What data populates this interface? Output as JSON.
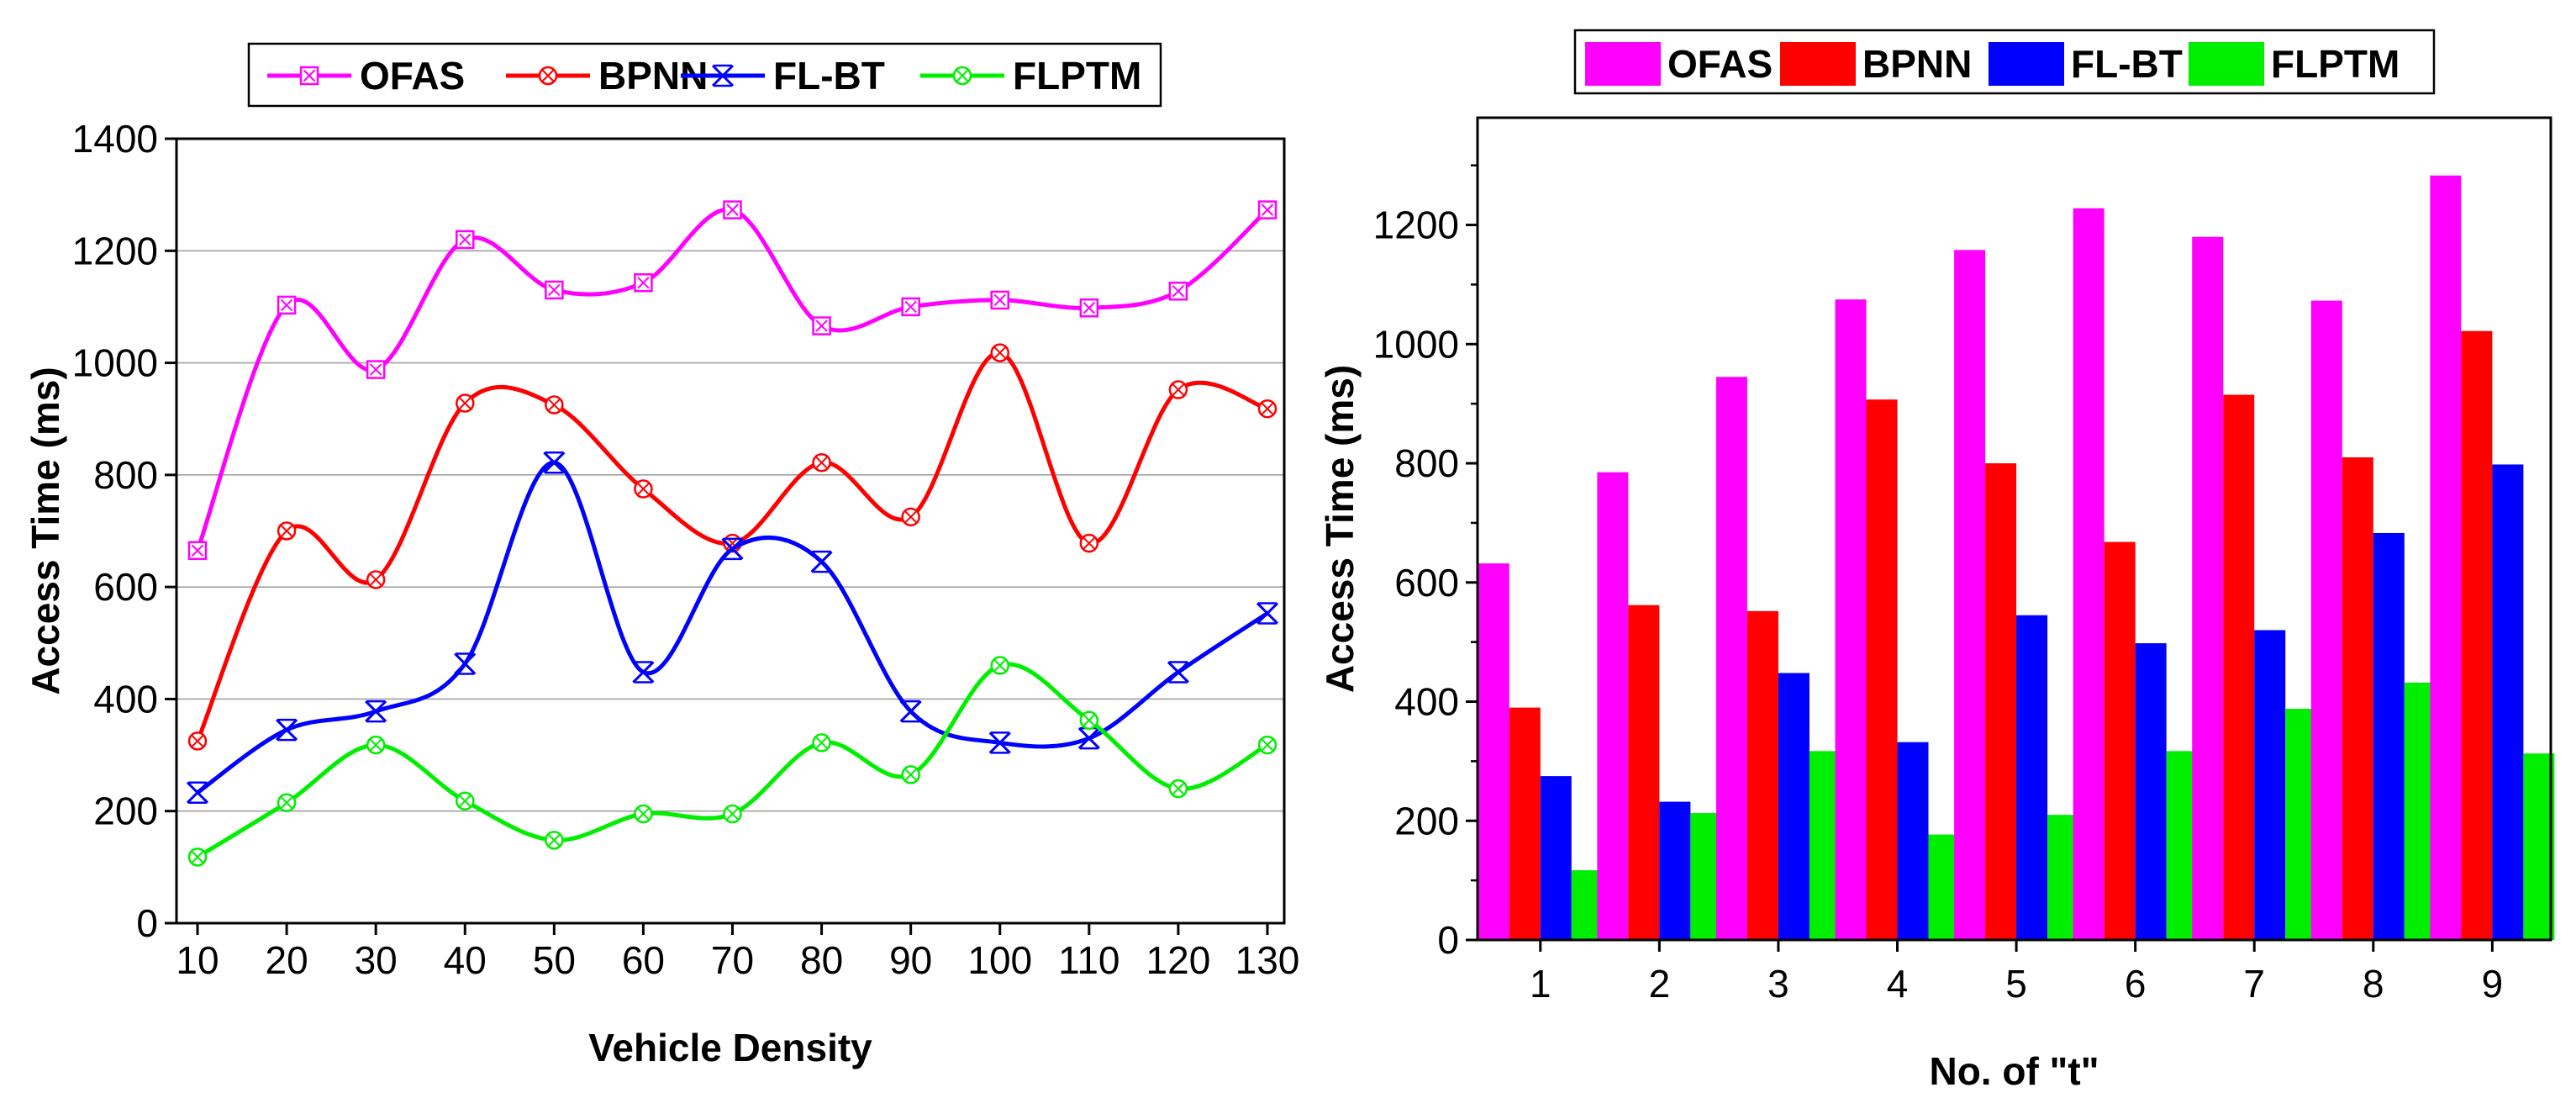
{
  "chart_data": [
    {
      "type": "line",
      "title": "",
      "xlabel": "Vehicle Density",
      "ylabel": "Access Time (ms)",
      "x": [
        10,
        20,
        30,
        40,
        50,
        60,
        70,
        80,
        90,
        100,
        110,
        120,
        130
      ],
      "xlim": [
        10,
        130
      ],
      "ylim": [
        0,
        1400
      ],
      "yticks": [
        0,
        200,
        400,
        600,
        800,
        1000,
        1200,
        1400
      ],
      "grid": true,
      "legend_position": "top",
      "series": [
        {
          "name": "OFAS",
          "color": "#ff00ff",
          "marker": "square-x",
          "values": [
            665,
            1103,
            988,
            1220,
            1130,
            1143,
            1273,
            1066,
            1100,
            1112,
            1098,
            1128,
            1273
          ]
        },
        {
          "name": "BPNN",
          "color": "#ff0000",
          "marker": "circle-x",
          "values": [
            325,
            700,
            613,
            928,
            925,
            775,
            678,
            822,
            725,
            1018,
            678,
            952,
            918
          ]
        },
        {
          "name": "FL-BT",
          "color": "#0000ff",
          "marker": "x",
          "values": [
            233,
            345,
            378,
            463,
            822,
            448,
            668,
            645,
            378,
            322,
            330,
            448,
            553
          ]
        },
        {
          "name": "FLPTM",
          "color": "#00ee00",
          "marker": "circle-x",
          "values": [
            118,
            215,
            318,
            218,
            148,
            195,
            195,
            322,
            265,
            460,
            362,
            240,
            318
          ]
        }
      ]
    },
    {
      "type": "bar",
      "title": "",
      "xlabel": "No. of \"t\"",
      "ylabel": "Access Time (ms)",
      "categories": [
        "1",
        "2",
        "3",
        "4",
        "5",
        "6",
        "7",
        "8",
        "9"
      ],
      "ylim": [
        0,
        1380
      ],
      "yticks": [
        0,
        200,
        400,
        600,
        800,
        1000,
        1200
      ],
      "grid": false,
      "legend_position": "top",
      "series": [
        {
          "name": "OFAS",
          "color": "#ff00ff",
          "values": [
            632,
            785,
            945,
            1075,
            1158,
            1228,
            1180,
            1073,
            1283
          ]
        },
        {
          "name": "BPNN",
          "color": "#ff0000",
          "values": [
            390,
            562,
            552,
            907,
            800,
            668,
            915,
            810,
            1022
          ]
        },
        {
          "name": "FL-BT",
          "color": "#0000ff",
          "values": [
            275,
            232,
            448,
            332,
            545,
            498,
            520,
            683,
            798
          ]
        },
        {
          "name": "FLPTM",
          "color": "#00ee00",
          "values": [
            117,
            213,
            317,
            177,
            210,
            317,
            388,
            432,
            313
          ]
        }
      ]
    }
  ]
}
